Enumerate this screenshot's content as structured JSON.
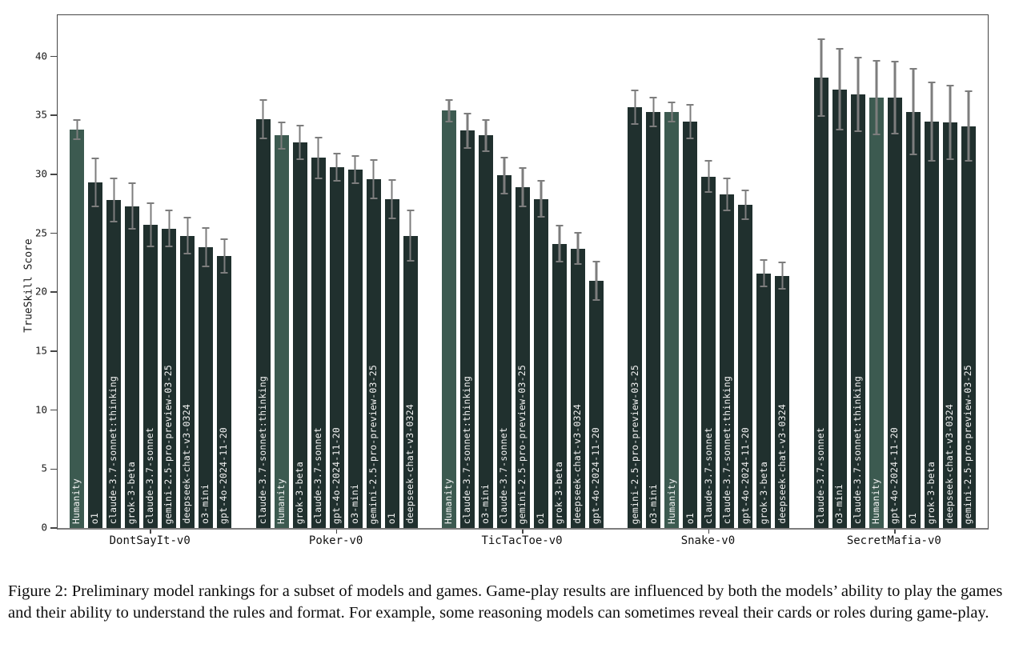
{
  "figure": {
    "caption": "Figure 2: Preliminary model rankings for a subset of models and games. Game-play results are influenced by both the models’ ability to play the games and their ability to understand the rules and format. For example, some reasoning models can sometimes reveal their cards or roles during game-play."
  },
  "chart_data": {
    "type": "bar",
    "title": "",
    "xlabel": "",
    "ylabel": "TrueSkill Score",
    "ylim": [
      0,
      43.5
    ],
    "yticks": [
      0,
      5,
      10,
      15,
      20,
      25,
      30,
      35,
      40
    ],
    "grid": false,
    "legend_position": "none",
    "bar_color": "#20302e",
    "highlight_color": "#3c5a50",
    "error_color": "#7d7d7d",
    "highlighted_model": "Humanity",
    "groups": [
      {
        "label": "DontSayIt-v0",
        "bars": [
          {
            "model": "Humanity",
            "value": 33.8,
            "error": 0.9,
            "highlight": true
          },
          {
            "model": "o1",
            "value": 29.3,
            "error": 2.1,
            "highlight": false
          },
          {
            "model": "claude-3.7-sonnet:thinking",
            "value": 27.8,
            "error": 1.9,
            "highlight": false
          },
          {
            "model": "grok-3-beta",
            "value": 27.3,
            "error": 2.0,
            "highlight": false
          },
          {
            "model": "claude-3.7-sonnet",
            "value": 25.7,
            "error": 1.9,
            "highlight": false
          },
          {
            "model": "gemini-2.5-pro-preview-03-25",
            "value": 25.4,
            "error": 1.6,
            "highlight": false
          },
          {
            "model": "deepseek-chat-v3-0324",
            "value": 24.8,
            "error": 1.6,
            "highlight": false
          },
          {
            "model": "o3-mini",
            "value": 23.8,
            "error": 1.7,
            "highlight": false
          },
          {
            "model": "gpt-4o-2024-11-20",
            "value": 23.1,
            "error": 1.5,
            "highlight": false
          }
        ]
      },
      {
        "label": "Poker-v0",
        "bars": [
          {
            "model": "claude-3.7-sonnet:thinking",
            "value": 34.7,
            "error": 1.7,
            "highlight": false
          },
          {
            "model": "Humanity",
            "value": 33.3,
            "error": 1.2,
            "highlight": true
          },
          {
            "model": "grok-3-beta",
            "value": 32.7,
            "error": 1.5,
            "highlight": false
          },
          {
            "model": "claude-3.7-sonnet",
            "value": 31.4,
            "error": 1.8,
            "highlight": false
          },
          {
            "model": "gpt-4o-2024-11-20",
            "value": 30.6,
            "error": 1.2,
            "highlight": false
          },
          {
            "model": "o3-mini",
            "value": 30.4,
            "error": 1.2,
            "highlight": false
          },
          {
            "model": "gemini-2.5-pro-preview-03-25",
            "value": 29.6,
            "error": 1.7,
            "highlight": false
          },
          {
            "model": "o1",
            "value": 27.9,
            "error": 1.7,
            "highlight": false
          },
          {
            "model": "deepseek-chat-v3-0324",
            "value": 24.8,
            "error": 2.2,
            "highlight": false
          }
        ]
      },
      {
        "label": "TicTacToe-v0",
        "bars": [
          {
            "model": "Humanity",
            "value": 35.4,
            "error": 1.0,
            "highlight": true
          },
          {
            "model": "claude-3.7-sonnet:thinking",
            "value": 33.7,
            "error": 1.5,
            "highlight": false
          },
          {
            "model": "o3-mini",
            "value": 33.3,
            "error": 1.4,
            "highlight": false
          },
          {
            "model": "claude-3.7-sonnet",
            "value": 29.9,
            "error": 1.6,
            "highlight": false
          },
          {
            "model": "gemini-2.5-pro-preview-03-25",
            "value": 28.9,
            "error": 1.7,
            "highlight": false
          },
          {
            "model": "o1",
            "value": 27.9,
            "error": 1.6,
            "highlight": false
          },
          {
            "model": "grok-3-beta",
            "value": 24.1,
            "error": 1.6,
            "highlight": false
          },
          {
            "model": "deepseek-chat-v3-0324",
            "value": 23.7,
            "error": 1.4,
            "highlight": false
          },
          {
            "model": "gpt-4o-2024-11-20",
            "value": 21.0,
            "error": 1.7,
            "highlight": false
          }
        ]
      },
      {
        "label": "Snake-v0",
        "bars": [
          {
            "model": "gemini-2.5-pro-preview-03-25",
            "value": 35.7,
            "error": 1.5,
            "highlight": false
          },
          {
            "model": "o3-mini",
            "value": 35.3,
            "error": 1.3,
            "highlight": false
          },
          {
            "model": "Humanity",
            "value": 35.3,
            "error": 0.9,
            "highlight": true
          },
          {
            "model": "o1",
            "value": 34.5,
            "error": 1.5,
            "highlight": false
          },
          {
            "model": "claude-3.7-sonnet",
            "value": 29.8,
            "error": 1.4,
            "highlight": false
          },
          {
            "model": "claude-3.7-sonnet:thinking",
            "value": 28.3,
            "error": 1.4,
            "highlight": false
          },
          {
            "model": "gpt-4o-2024-11-20",
            "value": 27.4,
            "error": 1.3,
            "highlight": false
          },
          {
            "model": "grok-3-beta",
            "value": 21.6,
            "error": 1.2,
            "highlight": false
          },
          {
            "model": "deepseek-chat-v3-0324",
            "value": 21.4,
            "error": 1.2,
            "highlight": false
          }
        ]
      },
      {
        "label": "SecretMafia-v0",
        "bars": [
          {
            "model": "claude-3.7-sonnet",
            "value": 38.2,
            "error": 3.3,
            "highlight": false
          },
          {
            "model": "o3-mini",
            "value": 37.2,
            "error": 3.5,
            "highlight": false
          },
          {
            "model": "claude-3.7-sonnet:thinking",
            "value": 36.8,
            "error": 3.2,
            "highlight": false
          },
          {
            "model": "Humanity",
            "value": 36.5,
            "error": 3.2,
            "highlight": true
          },
          {
            "model": "gpt-4o-2024-11-20",
            "value": 36.5,
            "error": 3.1,
            "highlight": false
          },
          {
            "model": "o1",
            "value": 35.3,
            "error": 3.7,
            "highlight": false
          },
          {
            "model": "grok-3-beta",
            "value": 34.5,
            "error": 3.4,
            "highlight": false
          },
          {
            "model": "deepseek-chat-v3-0324",
            "value": 34.4,
            "error": 3.2,
            "highlight": false
          },
          {
            "model": "gemini-2.5-pro-preview-03-25",
            "value": 34.1,
            "error": 3.0,
            "highlight": false
          }
        ]
      }
    ]
  }
}
